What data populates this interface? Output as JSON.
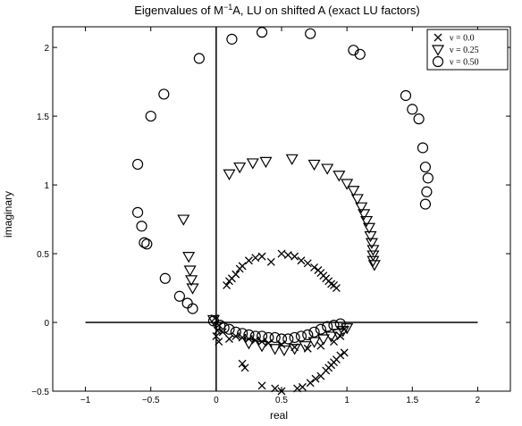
{
  "chart_data": {
    "type": "scatter",
    "title_pre": "Eigenvalues of M",
    "title_sup": "−1",
    "title_post": "A, LU on shifted A (exact LU factors)",
    "xlabel": "real",
    "ylabel": "imaginary",
    "xlim": [
      -1.25,
      2.25
    ],
    "ylim": [
      -0.5,
      2.15
    ],
    "xticks": [
      -1,
      -0.5,
      0,
      0.5,
      1,
      1.5,
      2
    ],
    "xtick_labels": [
      "−1",
      "−0.5",
      "0",
      "0.5",
      "1",
      "1.5",
      "2"
    ],
    "yticks": [
      -0.5,
      0,
      0.5,
      1,
      1.5,
      2
    ],
    "ytick_labels": [
      "−0.5",
      "0",
      "0.5",
      "1",
      "1.5",
      "2"
    ],
    "grid": false,
    "legend_position": "top-right",
    "reference_lines": {
      "horizontal_y0": [
        -1,
        2
      ],
      "vertical_x0": [
        -0.5,
        2.15
      ]
    },
    "series": [
      {
        "name": "ν = 0.0",
        "marker": "x",
        "points": [
          [
            -0.01,
            0.03
          ],
          [
            0.02,
            -0.02
          ],
          [
            0.01,
            -0.06
          ],
          [
            0.0,
            -0.1
          ],
          [
            0.02,
            -0.14
          ],
          [
            0.05,
            -0.07
          ],
          [
            0.1,
            -0.12
          ],
          [
            0.15,
            -0.1
          ],
          [
            0.2,
            -0.11
          ],
          [
            0.25,
            -0.12
          ],
          [
            0.3,
            -0.13
          ],
          [
            0.35,
            -0.14
          ],
          [
            0.4,
            -0.15
          ],
          [
            0.5,
            -0.16
          ],
          [
            0.6,
            -0.18
          ],
          [
            0.7,
            -0.19
          ],
          [
            0.8,
            -0.17
          ],
          [
            0.9,
            -0.14
          ],
          [
            0.95,
            -0.1
          ],
          [
            0.98,
            -0.05
          ],
          [
            0.08,
            0.27
          ],
          [
            0.1,
            0.3
          ],
          [
            0.12,
            0.32
          ],
          [
            0.15,
            0.35
          ],
          [
            0.18,
            0.39
          ],
          [
            0.2,
            0.41
          ],
          [
            0.25,
            0.45
          ],
          [
            0.3,
            0.47
          ],
          [
            0.35,
            0.48
          ],
          [
            0.42,
            0.44
          ],
          [
            0.5,
            0.5
          ],
          [
            0.55,
            0.49
          ],
          [
            0.6,
            0.48
          ],
          [
            0.65,
            0.45
          ],
          [
            0.7,
            0.43
          ],
          [
            0.75,
            0.4
          ],
          [
            0.78,
            0.38
          ],
          [
            0.8,
            0.36
          ],
          [
            0.82,
            0.34
          ],
          [
            0.84,
            0.32
          ],
          [
            0.86,
            0.3
          ],
          [
            0.88,
            0.28
          ],
          [
            0.9,
            0.27
          ],
          [
            0.92,
            0.25
          ],
          [
            0.2,
            -0.3
          ],
          [
            0.22,
            -0.33
          ],
          [
            0.35,
            -0.46
          ],
          [
            0.45,
            -0.48
          ],
          [
            0.5,
            -0.5
          ],
          [
            0.62,
            -0.48
          ],
          [
            0.66,
            -0.47
          ],
          [
            0.72,
            -0.44
          ],
          [
            0.76,
            -0.41
          ],
          [
            0.8,
            -0.39
          ],
          [
            0.84,
            -0.35
          ],
          [
            0.86,
            -0.33
          ],
          [
            0.88,
            -0.31
          ],
          [
            0.9,
            -0.29
          ],
          [
            0.92,
            -0.27
          ],
          [
            0.95,
            -0.24
          ],
          [
            0.98,
            -0.22
          ]
        ]
      },
      {
        "name": "ν = 0.25",
        "marker": "triangle-down",
        "points": [
          [
            -0.25,
            0.75
          ],
          [
            -0.21,
            0.48
          ],
          [
            -0.2,
            0.38
          ],
          [
            -0.19,
            0.31
          ],
          [
            -0.18,
            0.25
          ],
          [
            -0.02,
            0.02
          ],
          [
            0.1,
            1.08
          ],
          [
            0.18,
            1.13
          ],
          [
            0.28,
            1.16
          ],
          [
            0.38,
            1.17
          ],
          [
            0.58,
            1.19
          ],
          [
            0.75,
            1.15
          ],
          [
            0.85,
            1.12
          ],
          [
            0.94,
            1.07
          ],
          [
            1.0,
            1.01
          ],
          [
            1.05,
            0.96
          ],
          [
            1.08,
            0.9
          ],
          [
            1.11,
            0.84
          ],
          [
            1.13,
            0.79
          ],
          [
            1.15,
            0.74
          ],
          [
            1.17,
            0.69
          ],
          [
            1.18,
            0.63
          ],
          [
            1.19,
            0.58
          ],
          [
            1.2,
            0.53
          ],
          [
            1.2,
            0.49
          ],
          [
            1.2,
            0.45
          ],
          [
            1.21,
            0.42
          ],
          [
            0.25,
            -0.15
          ],
          [
            0.35,
            -0.17
          ],
          [
            0.45,
            -0.19
          ],
          [
            0.52,
            -0.2
          ],
          [
            0.6,
            -0.19
          ],
          [
            0.68,
            -0.17
          ],
          [
            0.75,
            -0.14
          ],
          [
            0.82,
            -0.12
          ],
          [
            0.88,
            -0.1
          ],
          [
            0.93,
            -0.08
          ],
          [
            0.97,
            -0.06
          ],
          [
            1.0,
            -0.04
          ]
        ]
      },
      {
        "name": "ν = 0.50",
        "marker": "circle",
        "points": [
          [
            -0.13,
            1.92
          ],
          [
            -0.4,
            1.66
          ],
          [
            -0.5,
            1.5
          ],
          [
            -0.6,
            1.15
          ],
          [
            -0.6,
            0.8
          ],
          [
            -0.57,
            0.7
          ],
          [
            -0.55,
            0.58
          ],
          [
            -0.53,
            0.57
          ],
          [
            -0.39,
            0.32
          ],
          [
            -0.28,
            0.19
          ],
          [
            -0.22,
            0.14
          ],
          [
            -0.18,
            0.1
          ],
          [
            -0.02,
            0.01
          ],
          [
            0.03,
            -0.02
          ],
          [
            0.06,
            -0.04
          ],
          [
            0.1,
            -0.05
          ],
          [
            0.15,
            -0.07
          ],
          [
            0.2,
            -0.08
          ],
          [
            0.25,
            -0.09
          ],
          [
            0.3,
            -0.1
          ],
          [
            0.35,
            -0.1
          ],
          [
            0.4,
            -0.11
          ],
          [
            0.45,
            -0.11
          ],
          [
            0.5,
            -0.12
          ],
          [
            0.55,
            -0.12
          ],
          [
            0.6,
            -0.11
          ],
          [
            0.65,
            -0.1
          ],
          [
            0.7,
            -0.09
          ],
          [
            0.75,
            -0.07
          ],
          [
            0.8,
            -0.05
          ],
          [
            0.85,
            -0.03
          ],
          [
            0.9,
            -0.02
          ],
          [
            0.95,
            -0.01
          ],
          [
            0.12,
            2.06
          ],
          [
            0.35,
            2.11
          ],
          [
            0.72,
            2.1
          ],
          [
            1.05,
            1.98
          ],
          [
            1.1,
            1.95
          ],
          [
            1.45,
            1.65
          ],
          [
            1.5,
            1.55
          ],
          [
            1.55,
            1.48
          ],
          [
            1.58,
            1.27
          ],
          [
            1.6,
            1.13
          ],
          [
            1.62,
            1.05
          ],
          [
            1.61,
            0.95
          ],
          [
            1.6,
            0.86
          ]
        ]
      }
    ]
  }
}
